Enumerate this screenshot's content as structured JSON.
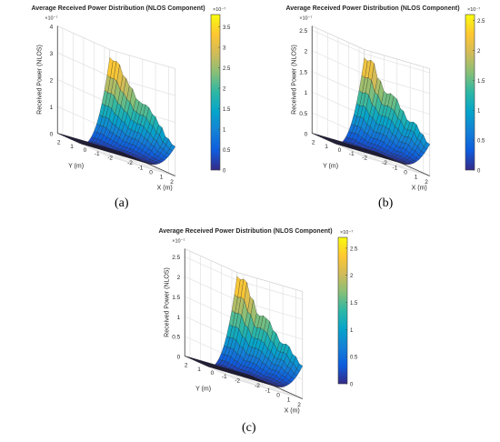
{
  "figure": {
    "panel_labels": [
      "(a)",
      "(b)",
      "(c)"
    ]
  },
  "chart_data": [
    {
      "type": "surface",
      "title": "Average Received Power Distribution (NLOS Component)",
      "zlabel": "Received Power (NLOS)",
      "xlabel": "X (m)",
      "ylabel": "Y (m)",
      "exponent_label": "×10⁻⁷",
      "x_ticks": [
        "-2",
        "-1",
        "0",
        "1",
        "2"
      ],
      "y_ticks": [
        "2",
        "1",
        "0",
        "-1",
        "-2"
      ],
      "z_ticks": [
        "0",
        "1",
        "2",
        "3",
        "4"
      ],
      "zlim": [
        0,
        4
      ],
      "colorbar_ticks": [
        "0",
        "0.5",
        "1",
        "1.5",
        "2",
        "2.5",
        "3",
        "3.5"
      ],
      "colorbar_range": [
        0,
        3.8
      ],
      "edge_peaks": [
        2.0,
        2.2,
        2.6,
        2.9,
        3.1,
        3.0,
        3.3,
        3.5,
        3.8,
        3.7
      ],
      "colormap": "parula"
    },
    {
      "type": "surface",
      "title": "Average Received Power Distribution (NLOS Component)",
      "zlabel": "Received Power (NLOS)",
      "xlabel": "X (m)",
      "ylabel": "Y (m)",
      "exponent_label": "×10⁻⁷",
      "x_ticks": [
        "-2",
        "-1",
        "0",
        "1",
        "2"
      ],
      "y_ticks": [
        "2",
        "1",
        "0",
        "-1",
        "-2"
      ],
      "z_ticks": [
        "0",
        "0.5",
        "1",
        "1.5",
        "2",
        "2.5"
      ],
      "zlim": [
        0,
        2.6
      ],
      "colorbar_ticks": [
        "0",
        "0.5",
        "1",
        "1.5",
        "2",
        "2.5"
      ],
      "colorbar_range": [
        0,
        2.6
      ],
      "edge_peaks": [
        1.4,
        1.6,
        1.8,
        1.7,
        1.9,
        2.1,
        2.0,
        2.2,
        2.5,
        2.4
      ],
      "colormap": "parula"
    },
    {
      "type": "surface",
      "title": "Average Received Power Distribution (NLOS Component)",
      "zlabel": "Received Power (NLOS)",
      "xlabel": "X (m)",
      "ylabel": "Y (m)",
      "exponent_label": "×10⁻⁷",
      "x_ticks": [
        "-2",
        "-1",
        "0",
        "1",
        "2"
      ],
      "y_ticks": [
        "2",
        "1",
        "0",
        "-1",
        "-2"
      ],
      "z_ticks": [
        "0",
        "0.5",
        "1",
        "1.5",
        "2",
        "2.5"
      ],
      "zlim": [
        0,
        2.7
      ],
      "colorbar_ticks": [
        "0",
        "0.5",
        "1",
        "1.5",
        "2",
        "2.5"
      ],
      "colorbar_range": [
        0,
        2.7
      ],
      "edge_peaks": [
        1.5,
        1.7,
        1.9,
        1.8,
        2.0,
        2.2,
        2.1,
        2.4,
        2.7,
        2.6
      ],
      "colormap": "parula"
    }
  ]
}
